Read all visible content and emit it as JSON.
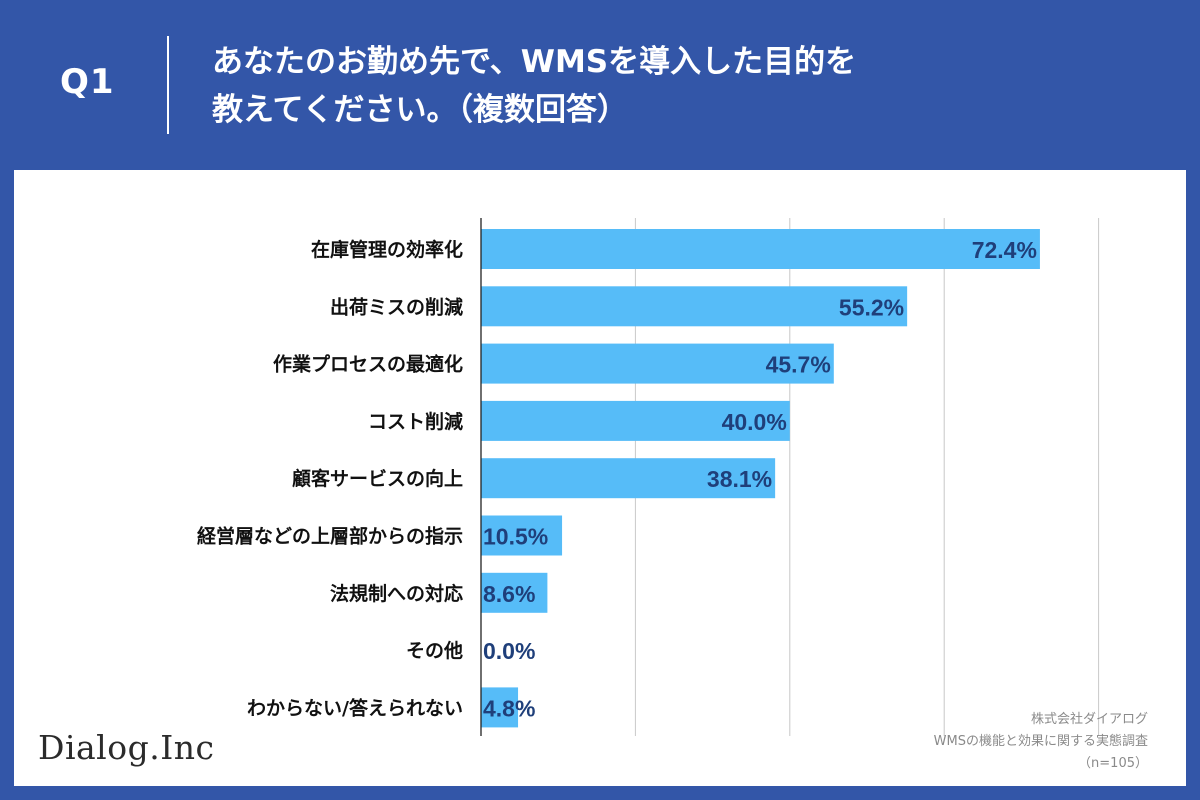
{
  "header": {
    "question_number": "Q1",
    "title_line1": "あなたのお勤め先で、WMSを導入した目的を",
    "title_line2": "教えてください。（複数回答）"
  },
  "colors": {
    "background": "#3356a8",
    "panel": "#ffffff",
    "bar": "#56bcf8",
    "value_label": "#1f3f7a",
    "category_label": "#111111",
    "grid": "#c8c8c8"
  },
  "chart_data": {
    "type": "bar",
    "orientation": "horizontal",
    "categories": [
      "在庫管理の効率化",
      "出荷ミスの削減",
      "作業プロセスの最適化",
      "コスト削減",
      "顧客サービスの向上",
      "経営層などの上層部からの指示",
      "法規制への対応",
      "その他",
      "わからない/答えられない"
    ],
    "values": [
      72.4,
      55.2,
      45.7,
      40.0,
      38.1,
      10.5,
      8.6,
      0.0,
      4.8
    ],
    "value_labels": [
      "72.4%",
      "55.2%",
      "45.7%",
      "40.0%",
      "38.1%",
      "10.5%",
      "8.6%",
      "0.0%",
      "4.8%"
    ],
    "xlim": [
      0,
      80
    ],
    "grid_values": [
      20,
      40,
      60,
      80
    ],
    "unit": "%"
  },
  "branding": {
    "logo": "Dialog.Inc"
  },
  "source": {
    "company": "株式会社ダイアログ",
    "survey": "WMSの機能と効果に関する実態調査",
    "sample": "（n=105）"
  }
}
